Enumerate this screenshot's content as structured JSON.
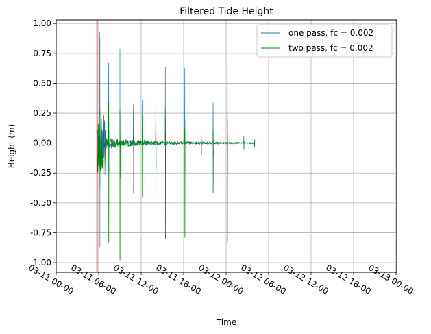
{
  "chart_data": {
    "type": "line",
    "title": "Filtered Tide Height",
    "xlabel": "Time",
    "ylabel": "Height (m)",
    "x_ticks": [
      "03-11 00-00",
      "03-11 06-00",
      "03-11 12-00",
      "03-11 18-00",
      "03-12 00-00",
      "03-12 06-00",
      "03-12 12-00",
      "03-12 18-00",
      "03-13 00-00"
    ],
    "y_ticks": [
      "-1.00",
      "-0.75",
      "-0.50",
      "-0.25",
      "0.00",
      "0.25",
      "0.50",
      "0.75",
      "1.00"
    ],
    "ylim": [
      -1.08,
      1.03
    ],
    "x_range": [
      "03-11 00-00",
      "03-13 00-00"
    ],
    "grid": true,
    "legend_position": "top-right",
    "marker_line": {
      "x": "03-11 05-46",
      "color": "#ff0000"
    },
    "series": [
      {
        "name": "one pass, fc = 0.002",
        "color": "#1f77b4",
        "spikes": [
          {
            "x": "03-11 06-10",
            "high": 0.93,
            "low": -0.87
          },
          {
            "x": "03-11 07-25",
            "high": 0.67,
            "low": -0.83
          },
          {
            "x": "03-11 09-00",
            "high": 0.79,
            "low": -0.98
          },
          {
            "x": "03-11 10-55",
            "high": 0.33,
            "low": -0.42
          },
          {
            "x": "03-11 12-10",
            "high": 0.36,
            "low": -0.45
          },
          {
            "x": "03-11 14-05",
            "high": 0.58,
            "low": -0.71
          },
          {
            "x": "03-11 15-25",
            "high": 0.64,
            "low": -0.8
          },
          {
            "x": "03-11 18-10",
            "high": 0.63,
            "low": -0.79
          },
          {
            "x": "03-11 20-30",
            "high": 0.06,
            "low": -0.1
          },
          {
            "x": "03-11 22-10",
            "high": 0.34,
            "low": -0.42
          },
          {
            "x": "03-12 00-10",
            "high": 0.67,
            "low": -0.84
          },
          {
            "x": "03-12 02-30",
            "high": 0.06,
            "low": -0.05
          },
          {
            "x": "03-12 04-00",
            "high": 0.03,
            "low": -0.03
          }
        ]
      },
      {
        "name": "two pass, fc = 0.002",
        "color": "#008000",
        "spikes": [
          {
            "x": "03-11 06-10",
            "high": 0.88,
            "low": -0.37
          },
          {
            "x": "03-11 07-25",
            "high": 0.35,
            "low": -0.83
          },
          {
            "x": "03-11 09-00",
            "high": 0.28,
            "low": -0.98
          },
          {
            "x": "03-11 10-55",
            "high": 0.3,
            "low": -0.42
          },
          {
            "x": "03-11 12-10",
            "high": 0.24,
            "low": -0.45
          },
          {
            "x": "03-11 14-05",
            "high": 0.21,
            "low": -0.71
          },
          {
            "x": "03-11 15-25",
            "high": 0.3,
            "low": -0.8
          },
          {
            "x": "03-11 18-10",
            "high": 0.12,
            "low": -0.79
          },
          {
            "x": "03-11 20-30",
            "high": 0.03,
            "low": -0.1
          },
          {
            "x": "03-11 22-10",
            "high": 0.12,
            "low": -0.42
          },
          {
            "x": "03-12 00-10",
            "high": 0.25,
            "low": -0.84
          },
          {
            "x": "03-12 02-30",
            "high": 0.02,
            "low": -0.05
          },
          {
            "x": "03-12 04-00",
            "high": 0.02,
            "low": -0.03
          }
        ]
      }
    ]
  }
}
